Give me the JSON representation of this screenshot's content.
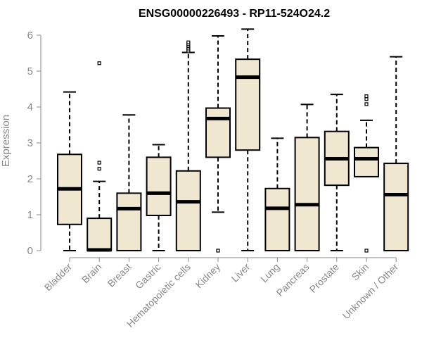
{
  "chart_data": {
    "type": "boxplot",
    "title": "ENSG00000226493 - RP11-524O24.2",
    "xlabel": "",
    "ylabel": "Expression",
    "ylim": [
      0,
      6
    ],
    "yticks": [
      0,
      1,
      2,
      3,
      4,
      5,
      6
    ],
    "ytick_labels": [
      "0",
      "1",
      "2",
      "3",
      "4",
      "5",
      "6"
    ],
    "box_fill": "#efe7cf",
    "line_color": "#000000",
    "categories": [
      "Bladder",
      "Brain",
      "Breast",
      "Gastric",
      "Hematopoietic cells",
      "Kidney",
      "Liver",
      "Lung",
      "Pancreas",
      "Prostate",
      "Skin",
      "Unknown / Other"
    ],
    "boxes": [
      {
        "category": "Bladder",
        "min": 0,
        "q1": 0.73,
        "median": 1.72,
        "q3": 2.68,
        "max": 4.42,
        "outliers": []
      },
      {
        "category": "Brain",
        "min": 0,
        "q1": 0,
        "median": 0.02,
        "q3": 0.9,
        "max": 1.93,
        "outliers": [
          2.28,
          2.45,
          5.22
        ]
      },
      {
        "category": "Breast",
        "min": 0,
        "q1": 0,
        "median": 1.17,
        "q3": 1.6,
        "max": 3.78,
        "outliers": []
      },
      {
        "category": "Gastric",
        "min": 0,
        "q1": 0.98,
        "median": 1.6,
        "q3": 2.6,
        "max": 2.95,
        "outliers": []
      },
      {
        "category": "Hematopoietic cells",
        "min": 0,
        "q1": 0,
        "median": 1.36,
        "q3": 2.22,
        "max": 5.52,
        "outliers": [
          5.55,
          5.6,
          5.65,
          5.7,
          5.75,
          5.8
        ]
      },
      {
        "category": "Kidney",
        "min": 1.07,
        "q1": 2.6,
        "median": 3.68,
        "q3": 3.97,
        "max": 5.98,
        "outliers": [
          0
        ]
      },
      {
        "category": "Liver",
        "min": 0,
        "q1": 2.8,
        "median": 4.83,
        "q3": 5.33,
        "max": 6.17,
        "outliers": []
      },
      {
        "category": "Lung",
        "min": 0,
        "q1": 0,
        "median": 1.18,
        "q3": 1.73,
        "max": 3.13,
        "outliers": []
      },
      {
        "category": "Pancreas",
        "min": 0,
        "q1": 0,
        "median": 1.28,
        "q3": 3.15,
        "max": 4.07,
        "outliers": []
      },
      {
        "category": "Prostate",
        "min": 0,
        "q1": 1.82,
        "median": 2.56,
        "q3": 3.32,
        "max": 4.35,
        "outliers": []
      },
      {
        "category": "Skin",
        "min": 2.06,
        "q1": 2.06,
        "median": 2.56,
        "q3": 2.87,
        "max": 3.63,
        "outliers": [
          0,
          4.08,
          4.22,
          4.3
        ]
      },
      {
        "category": "Unknown / Other",
        "min": 0,
        "q1": 0,
        "median": 1.56,
        "q3": 2.43,
        "max": 5.4,
        "outliers": []
      }
    ]
  }
}
